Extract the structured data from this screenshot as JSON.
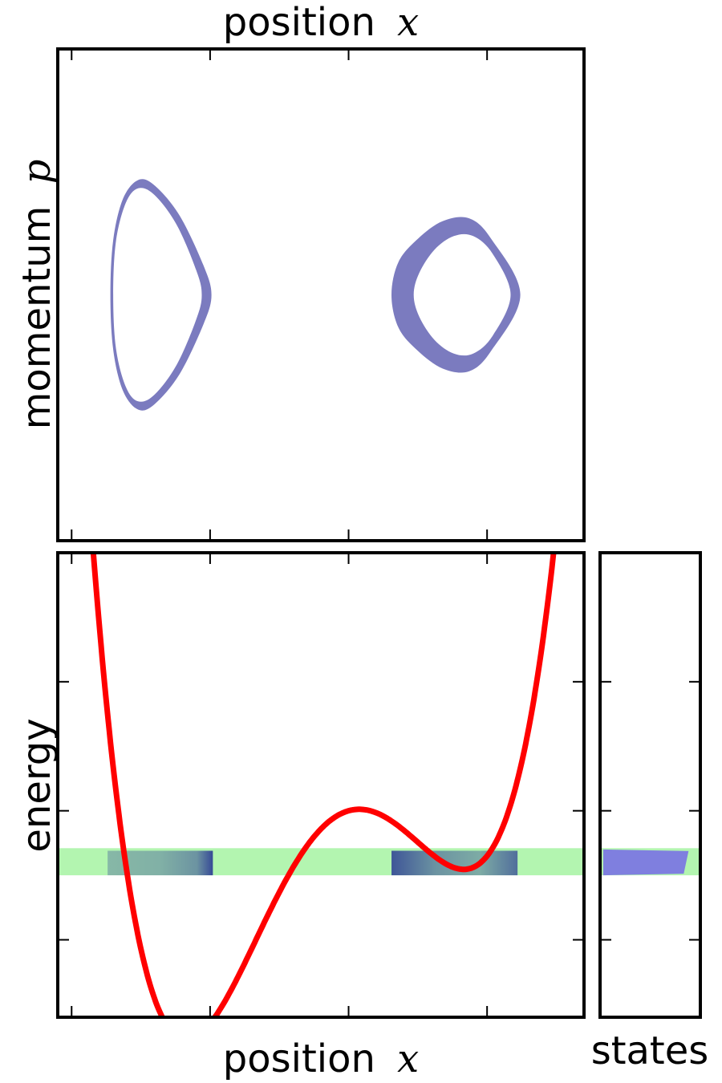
{
  "colors": {
    "potential": "#ff0000",
    "orbit": "#7b7bbf",
    "energy_band": "#b3f5b0",
    "band_density": "#00008b",
    "states": "#7f7fdf",
    "frame": "#000000"
  },
  "labels": {
    "top_title_word": "position",
    "top_title_var": "x",
    "top_ylabel_word": "momentum",
    "top_ylabel_var": "p",
    "bottom_xlabel_word": "position",
    "bottom_xlabel_var": "x",
    "bottom_ylabel": "energy",
    "states_xlabel": "states"
  },
  "chart_data": [
    {
      "type": "scatter",
      "panel": "phase-space",
      "xlabel": "position x",
      "ylabel": "momentum p",
      "xlim": [
        -2.1,
        1.7
      ],
      "ylim": [
        -1.8,
        1.8
      ],
      "xticks": [
        -2.0,
        -1.0,
        0.0,
        1.0
      ],
      "yticks": [],
      "series": [
        {
          "region": "left-orbit",
          "outer": [
            [
              -1.72,
              0.0
            ],
            [
              -1.7,
              0.4
            ],
            [
              -1.63,
              0.7
            ],
            [
              -1.52,
              0.84
            ],
            [
              -1.4,
              0.8
            ],
            [
              -1.22,
              0.58
            ],
            [
              -1.05,
              0.22
            ],
            [
              -0.99,
              0.0
            ],
            [
              -1.05,
              -0.22
            ],
            [
              -1.22,
              -0.58
            ],
            [
              -1.4,
              -0.8
            ],
            [
              -1.52,
              -0.84
            ],
            [
              -1.63,
              -0.7
            ],
            [
              -1.7,
              -0.4
            ]
          ],
          "inner": [
            [
              -1.7,
              0.0
            ],
            [
              -1.68,
              0.39
            ],
            [
              -1.61,
              0.67
            ],
            [
              -1.52,
              0.78
            ],
            [
              -1.4,
              0.73
            ],
            [
              -1.24,
              0.51
            ],
            [
              -1.1,
              0.18
            ],
            [
              -1.06,
              0.0
            ],
            [
              -1.1,
              -0.18
            ],
            [
              -1.24,
              -0.51
            ],
            [
              -1.4,
              -0.73
            ],
            [
              -1.52,
              -0.78
            ],
            [
              -1.61,
              -0.67
            ],
            [
              -1.68,
              -0.39
            ]
          ]
        },
        {
          "region": "right-orbit",
          "outer": [
            [
              0.31,
              0.0
            ],
            [
              0.36,
              0.24
            ],
            [
              0.5,
              0.41
            ],
            [
              0.68,
              0.54
            ],
            [
              0.87,
              0.56
            ],
            [
              1.03,
              0.41
            ],
            [
              1.24,
              0.0
            ],
            [
              1.03,
              -0.41
            ],
            [
              0.87,
              -0.56
            ],
            [
              0.68,
              -0.54
            ],
            [
              0.5,
              -0.41
            ],
            [
              0.36,
              -0.24
            ]
          ],
          "inner": [
            [
              0.47,
              0.0
            ],
            [
              0.51,
              0.16
            ],
            [
              0.62,
              0.33
            ],
            [
              0.76,
              0.43
            ],
            [
              0.9,
              0.43
            ],
            [
              1.04,
              0.3
            ],
            [
              1.17,
              0.0
            ],
            [
              1.04,
              -0.3
            ],
            [
              0.9,
              -0.43
            ],
            [
              0.76,
              -0.43
            ],
            [
              0.62,
              -0.33
            ],
            [
              0.51,
              -0.16
            ]
          ]
        }
      ]
    },
    {
      "type": "line",
      "panel": "potential",
      "xlabel": "position x",
      "ylabel": "energy",
      "xlim": [
        -2.1,
        1.7
      ],
      "ylim": [
        -1.6,
        2.0
      ],
      "xticks": [
        -2.0,
        -1.0,
        0.0,
        1.0
      ],
      "yticks": [
        -1.0,
        0.0,
        1.0
      ],
      "potential": {
        "formula": "x^4 + 0.35x^3 - 2x^2 + 0.3x",
        "coefficients": [
          1.0,
          0.35,
          -2.0,
          0.3,
          0.0
        ],
        "x_range": [
          -1.9,
          1.545
        ]
      },
      "energy_band": {
        "e_low": -0.5,
        "e_high": -0.29
      },
      "density_band": {
        "e_low": -0.5,
        "e_high": -0.31,
        "segments": [
          [
            -1.74,
            -0.98
          ],
          [
            0.31,
            1.22
          ]
        ]
      }
    },
    {
      "type": "area",
      "panel": "states",
      "xlabel": "states",
      "ylim": [
        -1.6,
        2.0
      ],
      "yticks": [
        -1.0,
        0.0,
        1.0
      ],
      "energy": [
        -0.3,
        -0.5
      ],
      "density": [
        0.85,
        0.85
      ]
    }
  ]
}
